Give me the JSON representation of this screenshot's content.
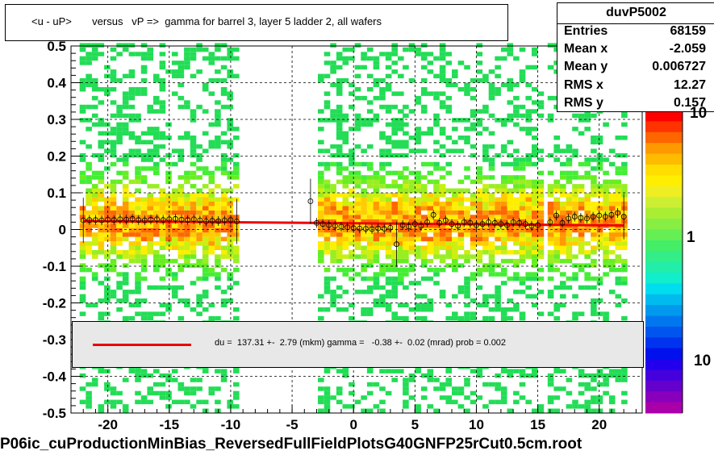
{
  "chart_data": {
    "type": "heatmap",
    "title": "<u - uP>       versus   vP =>  gamma for barrel 3, layer 5 ladder 2, all wafers",
    "histogram_name": "duvP5002",
    "xlim": [
      -23.0,
      23.5
    ],
    "ylim": [
      -0.5,
      0.5
    ],
    "x_ticks": [
      -20,
      -15,
      -10,
      -5,
      0,
      5,
      10,
      15,
      20
    ],
    "x_tick_labels": [
      "-20",
      "-15",
      "-10",
      "-5",
      "0",
      "5",
      "10",
      "15",
      "20"
    ],
    "y_ticks": [
      -0.5,
      -0.4,
      -0.3,
      -0.2,
      -0.1,
      0,
      0.1,
      0.2,
      0.3,
      0.4,
      0.5
    ],
    "y_tick_labels": [
      "-0.5",
      "-0.4",
      "-0.3",
      "-0.2",
      "-0.1",
      "0",
      "0.1",
      "0.2",
      "0.3",
      "0.4",
      "0.5"
    ],
    "grid": true,
    "z_axis_labels": [
      "10",
      "1",
      "10"
    ],
    "occupied_x_ranges": [
      [
        -22.3,
        -9.4
      ],
      [
        -2.9,
        3.8
      ],
      [
        4.0,
        15.4
      ],
      [
        15.8,
        22.0
      ]
    ],
    "stats": [
      {
        "label": "Entries",
        "value": "68159"
      },
      {
        "label": "Mean x",
        "value": "-2.059"
      },
      {
        "label": "Mean y",
        "value": "0.006727"
      },
      {
        "label": "RMS x",
        "value": "12.27"
      },
      {
        "label": "RMS y",
        "value": "0.157"
      }
    ],
    "profile_points": {
      "x": [
        -22,
        -21.5,
        -21,
        -20.5,
        -20,
        -19.5,
        -19,
        -18.5,
        -18,
        -17.5,
        -17,
        -16.5,
        -16,
        -15.5,
        -15,
        -14.5,
        -14,
        -13.5,
        -13,
        -12.5,
        -12,
        -11.5,
        -11,
        -10.5,
        -10,
        -9.5,
        -3.5,
        -3,
        -2.5,
        -2,
        -1.5,
        -1,
        -0.5,
        0,
        0.5,
        1,
        1.5,
        2,
        2.5,
        3,
        3.5,
        4,
        4.5,
        5,
        5.5,
        6,
        6.5,
        7,
        7.5,
        8,
        8.5,
        9,
        9.5,
        10,
        10.5,
        11,
        11.5,
        12,
        12.5,
        13,
        13.5,
        14,
        14.5,
        15,
        16,
        16.5,
        17,
        17.5,
        18,
        18.5,
        19,
        19.5,
        20,
        20.5,
        21,
        21.5,
        22
      ],
      "y": [
        0.025,
        0.026,
        0.026,
        0.025,
        0.027,
        0.026,
        0.028,
        0.027,
        0.029,
        0.026,
        0.025,
        0.027,
        0.028,
        0.026,
        0.028,
        0.029,
        0.027,
        0.026,
        0.028,
        0.025,
        0.022,
        0.024,
        0.023,
        0.025,
        0.026,
        0.022,
        0.077,
        0.018,
        0.015,
        0.012,
        0.01,
        0.008,
        0.006,
        0.004,
        0.003,
        0.002,
        0.001,
        0.003,
        0.002,
        0.005,
        -0.04,
        0.012,
        0.008,
        0.015,
        0.01,
        0.02,
        0.04,
        0.018,
        0.025,
        0.015,
        0.01,
        0.02,
        0.018,
        0.012,
        0.015,
        0.02,
        0.018,
        0.015,
        0.012,
        0.02,
        0.018,
        0.015,
        0.01,
        0.012,
        0.02,
        0.038,
        0.018,
        0.03,
        0.035,
        0.032,
        0.03,
        0.035,
        0.038,
        0.035,
        0.04,
        0.045,
        0.035
      ]
    },
    "fit_line": {
      "x": [
        -22,
        22
      ],
      "y": [
        0.023,
        0.011
      ]
    },
    "fit_label": "du =  137.31 +-  2.79 (mkm) gamma =   -0.38 +-  0.02 (mrad) prob = 0.002",
    "footer": "P06ic_cuProductionMinBias_ReversedFullFieldPlotsG40GNFP25rCut0.5cm.root",
    "colors": {
      "line": "#ee0000",
      "low": "#33dd33",
      "mid": "#ffee00",
      "high": "#ff6600"
    }
  }
}
